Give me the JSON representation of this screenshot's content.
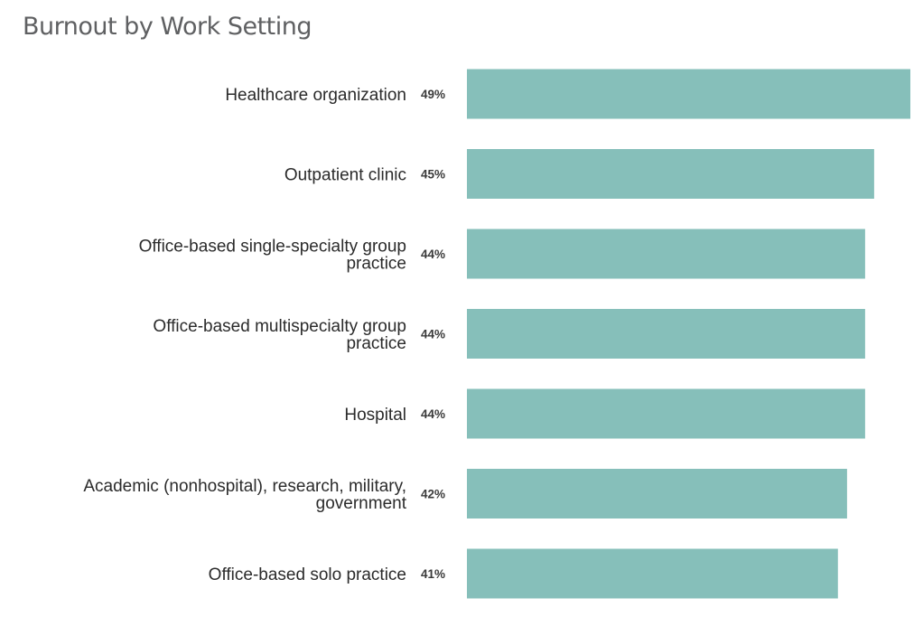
{
  "chart_data": {
    "type": "bar",
    "orientation": "horizontal",
    "title": "Burnout by Work Setting",
    "categories": [
      [
        "Healthcare organization"
      ],
      [
        "Outpatient clinic"
      ],
      [
        "Office-based single-specialty group",
        "practice"
      ],
      [
        "Office-based multispecialty group",
        "practice"
      ],
      [
        "Hospital"
      ],
      [
        "Academic (nonhospital), research, military,",
        "government"
      ],
      [
        "Office-based solo practice"
      ]
    ],
    "values": [
      49,
      45,
      44,
      44,
      44,
      42,
      41
    ],
    "value_labels": [
      "49%",
      "45%",
      "44%",
      "44%",
      "44%",
      "42%",
      "41%"
    ],
    "bar_color": "#86bfba",
    "xlim": [
      0,
      49
    ],
    "grid": false,
    "legend": "none"
  }
}
